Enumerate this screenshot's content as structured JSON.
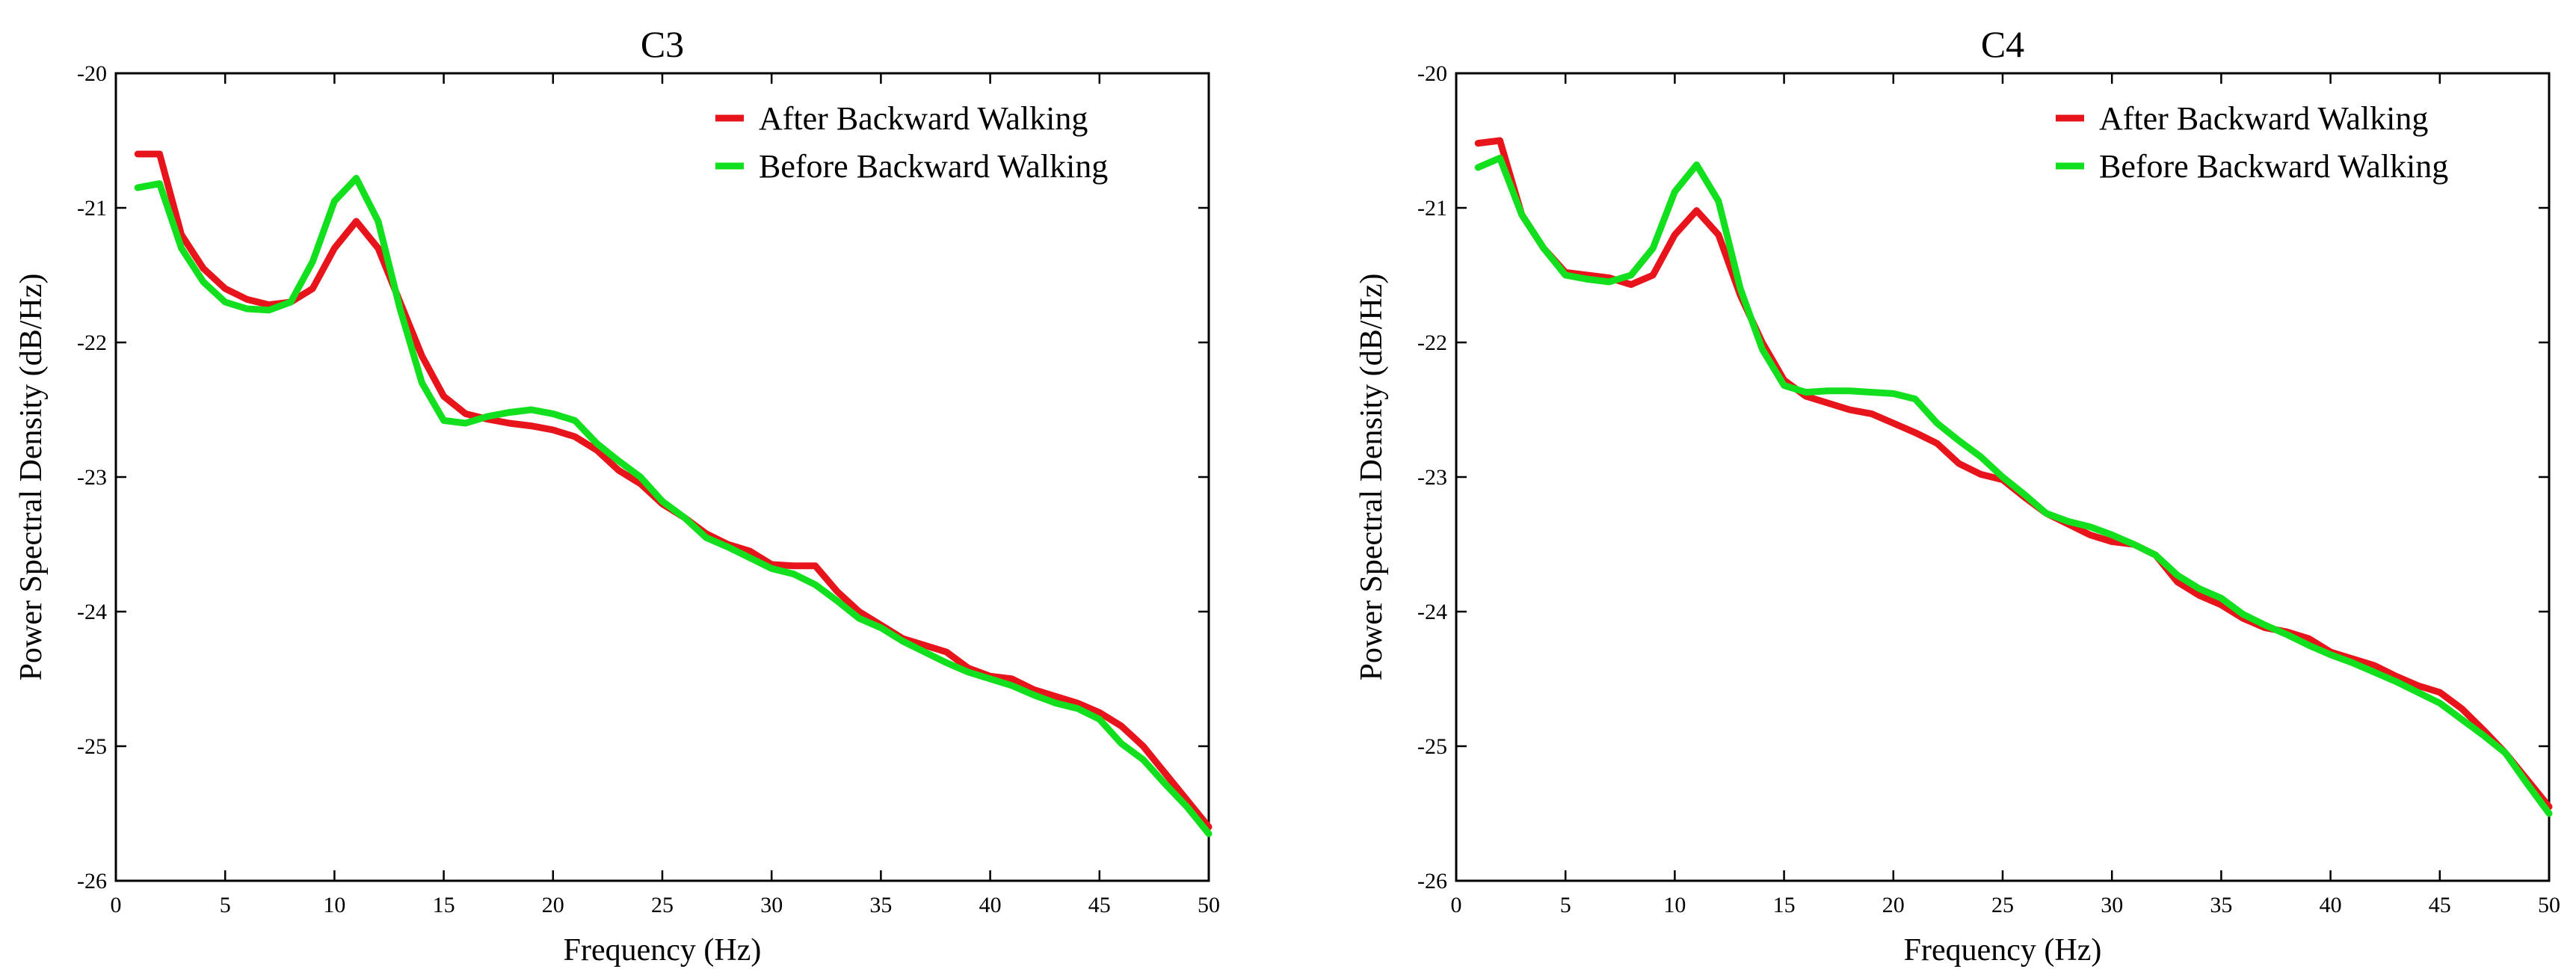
{
  "colors": {
    "after": "#e8141b",
    "before": "#12e01e",
    "axis": "#000000"
  },
  "chart_data": [
    {
      "type": "line",
      "title": "C3",
      "xlabel": "Frequency (Hz)",
      "ylabel": "Power Spectral Density (dB/Hz)",
      "xlim": [
        0,
        50
      ],
      "ylim": [
        -26,
        -20
      ],
      "xticks": [
        "0",
        "5",
        "10",
        "15",
        "20",
        "25",
        "30",
        "35",
        "40",
        "45",
        "50"
      ],
      "yticks": [
        "-26",
        "-25",
        "-24",
        "-23",
        "-22",
        "-21",
        "-20"
      ],
      "legend_position": "top-right",
      "grid": false,
      "series": [
        {
          "name": "After Backward Walking",
          "color": "#e8141b",
          "x": [
            1,
            2,
            3,
            4,
            5,
            6,
            7,
            8,
            9,
            10,
            11,
            12,
            13,
            14,
            15,
            16,
            17,
            18,
            19,
            20,
            21,
            22,
            23,
            24,
            25,
            26,
            27,
            28,
            29,
            30,
            31,
            32,
            33,
            34,
            35,
            36,
            37,
            38,
            39,
            40,
            41,
            42,
            43,
            44,
            45,
            46,
            47,
            48,
            49,
            50
          ],
          "y": [
            -20.6,
            -20.6,
            -21.2,
            -21.45,
            -21.6,
            -21.68,
            -21.72,
            -21.7,
            -21.6,
            -21.3,
            -21.1,
            -21.3,
            -21.7,
            -22.1,
            -22.4,
            -22.53,
            -22.57,
            -22.6,
            -22.62,
            -22.65,
            -22.7,
            -22.8,
            -22.95,
            -23.05,
            -23.2,
            -23.3,
            -23.42,
            -23.5,
            -23.55,
            -23.65,
            -23.66,
            -23.66,
            -23.85,
            -24.0,
            -24.1,
            -24.2,
            -24.25,
            -24.3,
            -24.42,
            -24.48,
            -24.5,
            -24.58,
            -24.63,
            -24.68,
            -24.75,
            -24.85,
            -25.0,
            -25.2,
            -25.4,
            -25.6
          ]
        },
        {
          "name": "Before Backward Walking",
          "color": "#12e01e",
          "x": [
            1,
            2,
            3,
            4,
            5,
            6,
            7,
            8,
            9,
            10,
            11,
            12,
            13,
            14,
            15,
            16,
            17,
            18,
            19,
            20,
            21,
            22,
            23,
            24,
            25,
            26,
            27,
            28,
            29,
            30,
            31,
            32,
            33,
            34,
            35,
            36,
            37,
            38,
            39,
            40,
            41,
            42,
            43,
            44,
            45,
            46,
            47,
            48,
            49,
            50
          ],
          "y": [
            -20.85,
            -20.82,
            -21.3,
            -21.55,
            -21.7,
            -21.75,
            -21.76,
            -21.7,
            -21.4,
            -20.95,
            -20.78,
            -21.1,
            -21.75,
            -22.3,
            -22.58,
            -22.6,
            -22.55,
            -22.52,
            -22.5,
            -22.53,
            -22.58,
            -22.75,
            -22.88,
            -23.0,
            -23.18,
            -23.3,
            -23.45,
            -23.52,
            -23.6,
            -23.68,
            -23.72,
            -23.8,
            -23.92,
            -24.05,
            -24.12,
            -24.22,
            -24.3,
            -24.38,
            -24.45,
            -24.5,
            -24.55,
            -24.62,
            -24.68,
            -24.72,
            -24.8,
            -24.98,
            -25.1,
            -25.28,
            -25.45,
            -25.65
          ]
        }
      ]
    },
    {
      "type": "line",
      "title": "C4",
      "xlabel": "Frequency (Hz)",
      "ylabel": "Power Spectral Density (dB/Hz)",
      "xlim": [
        0,
        50
      ],
      "ylim": [
        -26,
        -20
      ],
      "xticks": [
        "0",
        "5",
        "10",
        "15",
        "20",
        "25",
        "30",
        "35",
        "40",
        "45",
        "50"
      ],
      "yticks": [
        "-26",
        "-25",
        "-24",
        "-23",
        "-22",
        "-21",
        "-20"
      ],
      "legend_position": "top-right",
      "grid": false,
      "series": [
        {
          "name": "After Backward Walking",
          "color": "#e8141b",
          "x": [
            1,
            2,
            3,
            4,
            5,
            6,
            7,
            8,
            9,
            10,
            11,
            12,
            13,
            14,
            15,
            16,
            17,
            18,
            19,
            20,
            21,
            22,
            23,
            24,
            25,
            26,
            27,
            28,
            29,
            30,
            31,
            32,
            33,
            34,
            35,
            36,
            37,
            38,
            39,
            40,
            41,
            42,
            43,
            44,
            45,
            46,
            47,
            48,
            49,
            50
          ],
          "y": [
            -20.52,
            -20.5,
            -21.05,
            -21.3,
            -21.48,
            -21.5,
            -21.52,
            -21.57,
            -21.5,
            -21.2,
            -21.02,
            -21.2,
            -21.65,
            -22.0,
            -22.28,
            -22.4,
            -22.45,
            -22.5,
            -22.53,
            -22.6,
            -22.67,
            -22.75,
            -22.9,
            -22.98,
            -23.02,
            -23.15,
            -23.27,
            -23.35,
            -23.43,
            -23.48,
            -23.5,
            -23.58,
            -23.78,
            -23.88,
            -23.95,
            -24.05,
            -24.12,
            -24.15,
            -24.2,
            -24.3,
            -24.35,
            -24.4,
            -24.48,
            -24.55,
            -24.6,
            -24.72,
            -24.88,
            -25.05,
            -25.25,
            -25.45
          ]
        },
        {
          "name": "Before Backward Walking",
          "color": "#12e01e",
          "x": [
            1,
            2,
            3,
            4,
            5,
            6,
            7,
            8,
            9,
            10,
            11,
            12,
            13,
            14,
            15,
            16,
            17,
            18,
            19,
            20,
            21,
            22,
            23,
            24,
            25,
            26,
            27,
            28,
            29,
            30,
            31,
            32,
            33,
            34,
            35,
            36,
            37,
            38,
            39,
            40,
            41,
            42,
            43,
            44,
            45,
            46,
            47,
            48,
            49,
            50
          ],
          "y": [
            -20.7,
            -20.63,
            -21.05,
            -21.3,
            -21.5,
            -21.53,
            -21.55,
            -21.5,
            -21.3,
            -20.88,
            -20.68,
            -20.95,
            -21.6,
            -22.05,
            -22.32,
            -22.37,
            -22.36,
            -22.36,
            -22.37,
            -22.38,
            -22.42,
            -22.6,
            -22.73,
            -22.85,
            -23.0,
            -23.13,
            -23.27,
            -23.33,
            -23.37,
            -23.43,
            -23.5,
            -23.58,
            -23.73,
            -23.83,
            -23.9,
            -24.02,
            -24.1,
            -24.17,
            -24.25,
            -24.32,
            -24.38,
            -24.45,
            -24.52,
            -24.6,
            -24.68,
            -24.8,
            -24.92,
            -25.05,
            -25.28,
            -25.5
          ]
        }
      ]
    }
  ]
}
